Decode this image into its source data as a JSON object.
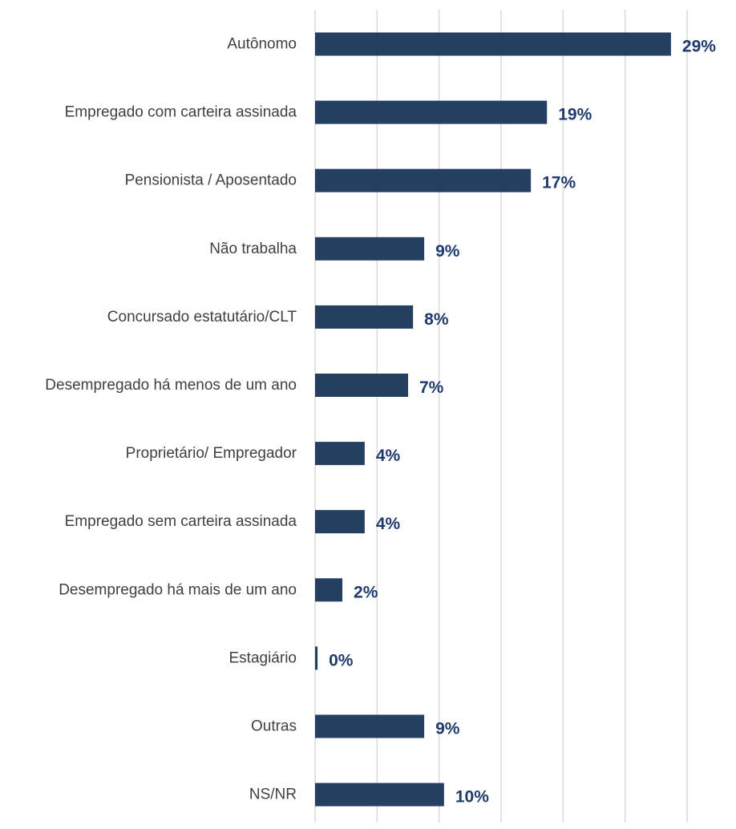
{
  "chart_data": {
    "type": "bar",
    "orientation": "horizontal",
    "categories": [
      "Autônomo",
      "Empregado com carteira assinada",
      "Pensionista / Aposentado",
      "Não trabalha",
      "Concursado estatutário/CLT",
      "Desempregado há menos de um ano",
      "Proprietário/ Empregador",
      "Empregado sem carteira assinada",
      "Desempregado há mais de um ano",
      "Estagiário",
      "Outras",
      "NS/NR"
    ],
    "values": [
      28.7,
      18.7,
      17.4,
      8.8,
      7.9,
      7.5,
      4.0,
      4.0,
      2.2,
      0.2,
      8.8,
      10.4
    ],
    "value_labels": [
      "29%",
      "19%",
      "17%",
      "9%",
      "8%",
      "7%",
      "4%",
      "4%",
      "2%",
      "0%",
      "9%",
      "10%"
    ],
    "xlim": [
      0,
      30
    ],
    "x_gridlines": [
      0,
      5,
      10,
      15,
      20,
      25,
      30
    ],
    "grid": true,
    "legend": "none",
    "colors": {
      "bar": "#243f60",
      "value_label": "#1f3a6b",
      "grid": "#d9d9d9",
      "category_label": "#404040"
    }
  }
}
